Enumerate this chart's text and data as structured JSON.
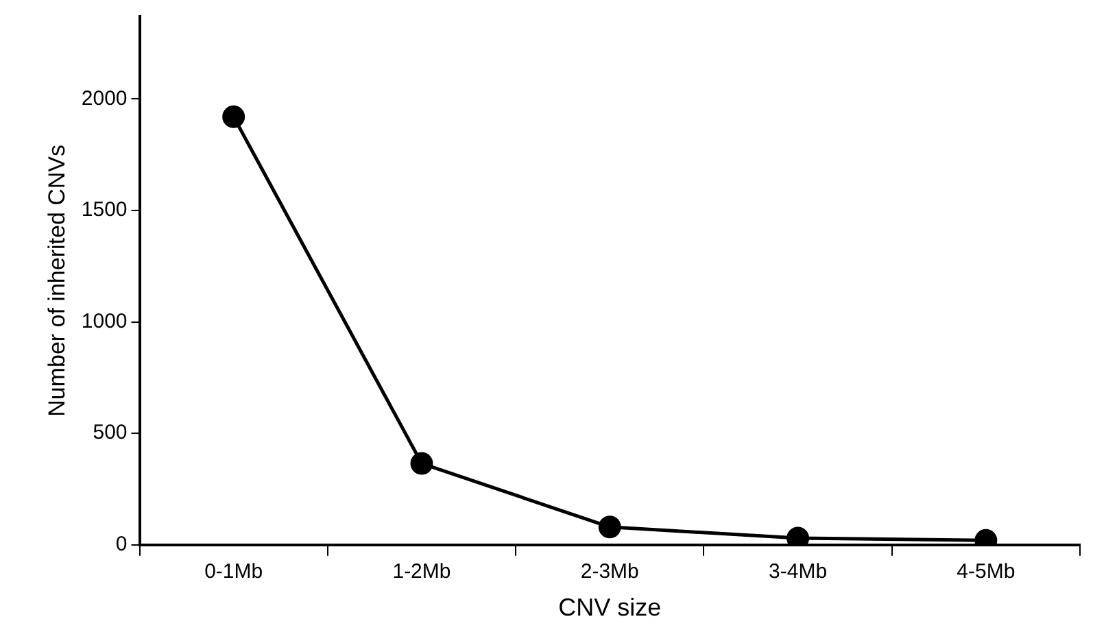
{
  "chart_data": {
    "type": "line",
    "xlabel": "CNV size",
    "ylabel": "Number of inherited CNVs",
    "categories": [
      "0-1Mb",
      "1-2Mb",
      "2-3Mb",
      "3-4Mb",
      "4-5Mb"
    ],
    "series": [
      {
        "color": "#000000",
        "values": [
          1920,
          365,
          80,
          30,
          20
        ]
      }
    ],
    "ylim": [
      0,
      2370
    ],
    "yticks": [
      0,
      500,
      1000,
      1500,
      2000
    ],
    "grid": false,
    "legend": false,
    "marker": "circle",
    "line_style": "solid"
  }
}
